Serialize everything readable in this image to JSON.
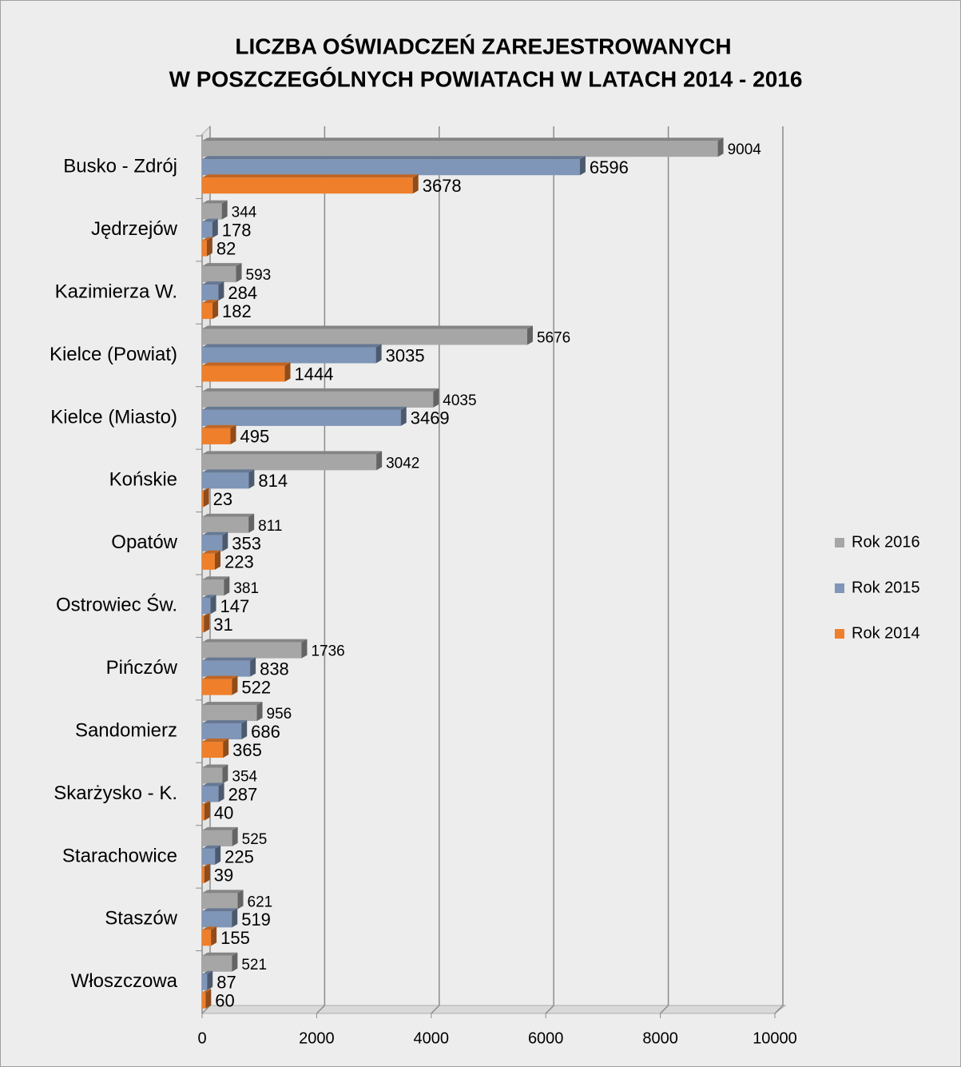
{
  "chart_data": {
    "type": "bar",
    "orientation": "horizontal",
    "title": [
      "LICZBA OŚWIADCZEŃ ZAREJESTROWANYCH",
      "W POSZCZEGÓLNYCH POWIATACH W LATACH 2014 - 2016"
    ],
    "categories": [
      "Busko - Zdrój",
      "Jędrzejów",
      "Kazimierza W.",
      "Kielce (Powiat)",
      "Kielce (Miasto)",
      "Końskie",
      "Opatów",
      "Ostrowiec Św.",
      "Pińczów",
      "Sandomierz",
      "Skarżysko - K.",
      "Starachowice",
      "Staszów",
      "Włoszczowa"
    ],
    "series": [
      {
        "name": "Rok 2016",
        "color": "#a6a6a6",
        "values": [
          9004,
          344,
          593,
          5676,
          4035,
          3042,
          811,
          381,
          1736,
          956,
          354,
          525,
          621,
          521
        ]
      },
      {
        "name": "Rok 2015",
        "color": "#7f96b8",
        "values": [
          6596,
          178,
          284,
          3035,
          3469,
          814,
          353,
          147,
          838,
          686,
          287,
          225,
          519,
          87
        ]
      },
      {
        "name": "Rok 2014",
        "color": "#f07f2c",
        "values": [
          3678,
          82,
          182,
          1444,
          495,
          23,
          223,
          31,
          522,
          365,
          40,
          39,
          155,
          60
        ]
      }
    ],
    "xlim": [
      0,
      10000
    ],
    "xticks": [
      0,
      2000,
      4000,
      6000,
      8000,
      10000
    ],
    "grid": true,
    "legend": "right"
  }
}
